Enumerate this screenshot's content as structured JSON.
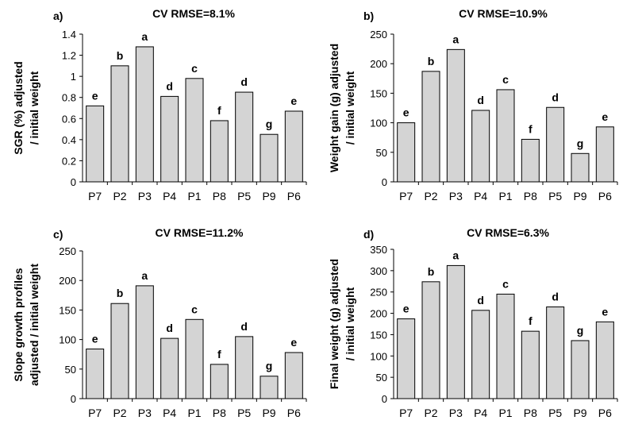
{
  "chart_data": [
    {
      "type": "bar",
      "panel": "a)",
      "title": "CV RMSE=8.1%",
      "ylabel": [
        "SGR (%) adjusted",
        "/ initial weight"
      ],
      "categories": [
        "P7",
        "P2",
        "P3",
        "P4",
        "P1",
        "P8",
        "P5",
        "P9",
        "P6"
      ],
      "values": [
        0.72,
        1.1,
        1.28,
        0.81,
        0.98,
        0.58,
        0.85,
        0.45,
        0.67
      ],
      "letters": [
        "e",
        "b",
        "a",
        "d",
        "c",
        "f",
        "d",
        "g",
        "e"
      ],
      "ylim": [
        0,
        1.4
      ],
      "yticks": [
        "0",
        "0.2",
        "0.4",
        "0.6",
        "0.8",
        "1",
        "1.2",
        "1.4"
      ],
      "yticks_values": [
        0,
        0.2,
        0.4,
        0.6,
        0.8,
        1.0,
        1.2,
        1.4
      ],
      "grid": false
    },
    {
      "type": "bar",
      "panel": "b)",
      "title": "CV RMSE=10.9%",
      "ylabel": [
        "Weight gain (g) adjusted",
        "/ initial weight"
      ],
      "categories": [
        "P7",
        "P2",
        "P3",
        "P4",
        "P1",
        "P8",
        "P5",
        "P9",
        "P6"
      ],
      "values": [
        100,
        187,
        224,
        121,
        156,
        72,
        126,
        48,
        93
      ],
      "letters": [
        "e",
        "b",
        "a",
        "d",
        "c",
        "f",
        "d",
        "g",
        "e"
      ],
      "ylim": [
        0,
        250
      ],
      "yticks": [
        "0",
        "50",
        "100",
        "150",
        "200",
        "250"
      ],
      "yticks_values": [
        0,
        50,
        100,
        150,
        200,
        250
      ],
      "grid": false
    },
    {
      "type": "bar",
      "panel": "c)",
      "title": "CV RMSE=11.2%",
      "ylabel": [
        "Slope growth profiles",
        "adjusted / initial weight"
      ],
      "categories": [
        "P7",
        "P2",
        "P3",
        "P4",
        "P1",
        "P8",
        "P5",
        "P9",
        "P6"
      ],
      "values": [
        84,
        161,
        191,
        102,
        134,
        58,
        105,
        38,
        78
      ],
      "letters": [
        "e",
        "b",
        "a",
        "d",
        "c",
        "f",
        "d",
        "g",
        "e"
      ],
      "ylim": [
        0,
        250
      ],
      "yticks": [
        "0",
        "50",
        "100",
        "150",
        "200",
        "250"
      ],
      "yticks_values": [
        0,
        50,
        100,
        150,
        200,
        250
      ],
      "grid": false
    },
    {
      "type": "bar",
      "panel": "d)",
      "title": "CV RMSE=6.3%",
      "ylabel": [
        "Final weight (g) adjusted",
        "/ initial weight"
      ],
      "categories": [
        "P7",
        "P2",
        "P3",
        "P4",
        "P1",
        "P8",
        "P5",
        "P9",
        "P6"
      ],
      "values": [
        187,
        274,
        312,
        207,
        245,
        158,
        215,
        136,
        180
      ],
      "letters": [
        "e",
        "b",
        "a",
        "d",
        "c",
        "f",
        "d",
        "g",
        "e"
      ],
      "ylim": [
        0,
        350
      ],
      "yticks": [
        "0",
        "50",
        "100",
        "150",
        "200",
        "250",
        "300",
        "350"
      ],
      "yticks_values": [
        0,
        50,
        100,
        150,
        200,
        250,
        300,
        350
      ],
      "grid": false
    }
  ]
}
